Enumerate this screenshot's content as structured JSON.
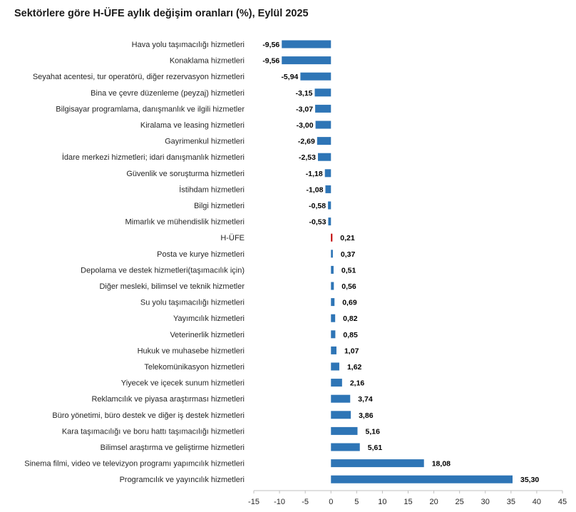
{
  "chart_data": {
    "type": "bar",
    "orientation": "horizontal",
    "title": "Sektörlere göre H-ÜFE aylık değişim oranları (%), Eylül 2025",
    "xlabel": "",
    "ylabel": "",
    "xlim": [
      -15,
      45
    ],
    "xticks": [
      -15,
      -10,
      -5,
      0,
      5,
      10,
      15,
      20,
      25,
      30,
      35,
      40,
      45
    ],
    "xtick_labels": [
      "-15",
      "-10",
      "-5",
      "0",
      "5",
      "10",
      "15",
      "20",
      "25",
      "30",
      "35",
      "40",
      "45"
    ],
    "grid": false,
    "colors": {
      "bar": "#2e75b6",
      "highlight": "#c00000",
      "axis": "#bfbfbf"
    },
    "categories": [
      "Hava yolu taşımacılığı hizmetleri",
      "Konaklama hizmetleri",
      "Seyahat acentesi, tur operatörü, diğer rezervasyon hizmetleri",
      "Bina ve çevre düzenleme (peyzaj) hizmetleri",
      "Bilgisayar programlama, danışmanlık ve ilgili hizmetler",
      "Kiralama ve leasing hizmetleri",
      "Gayrimenkul hizmetleri",
      "İdare merkezi hizmetleri; idari danışmanlık hizmetleri",
      "Güvenlik ve soruşturma hizmetleri",
      "İstihdam hizmetleri",
      "Bilgi hizmetleri",
      "Mimarlık ve mühendislik hizmetleri",
      "H-ÜFE",
      "Posta ve kurye hizmetleri",
      "Depolama ve destek hizmetleri(taşımacılık için)",
      "Diğer mesleki, bilimsel ve teknik hizmetler",
      "Su yolu taşımacılığı hizmetleri",
      "Yayımcılık hizmetleri",
      "Veterinerlik hizmetleri",
      "Hukuk ve muhasebe hizmetleri",
      "Telekomünikasyon hizmetleri",
      "Yiyecek ve içecek sunum hizmetleri",
      "Reklamcılık ve piyasa araştırması hizmetleri",
      "Büro yönetimi, büro destek ve diğer iş destek hizmetleri",
      "Kara taşımacılığı ve boru hattı taşımacılığı hizmetleri",
      "Bilimsel araştırma ve geliştirme hizmetleri",
      "Sinema filmi, video ve televizyon programı yapımcılık hizmetleri",
      "Programcılık ve yayıncılık hizmetleri"
    ],
    "values": [
      -9.56,
      -9.56,
      -5.94,
      -3.15,
      -3.07,
      -3.0,
      -2.69,
      -2.53,
      -1.18,
      -1.08,
      -0.58,
      -0.53,
      0.21,
      0.37,
      0.51,
      0.56,
      0.69,
      0.82,
      0.85,
      1.07,
      1.62,
      2.16,
      3.74,
      3.86,
      5.16,
      5.61,
      18.08,
      35.3
    ],
    "value_labels": [
      "-9,56",
      "-9,56",
      "-5,94",
      "-3,15",
      "-3,07",
      "-3,00",
      "-2,69",
      "-2,53",
      "-1,18",
      "-1,08",
      "-0,58",
      "-0,53",
      "0,21",
      "0,37",
      "0,51",
      "0,56",
      "0,69",
      "0,82",
      "0,85",
      "1,07",
      "1,62",
      "2,16",
      "3,74",
      "3,86",
      "5,16",
      "5,61",
      "18,08",
      "35,30"
    ],
    "highlight_category": "H-ÜFE"
  }
}
